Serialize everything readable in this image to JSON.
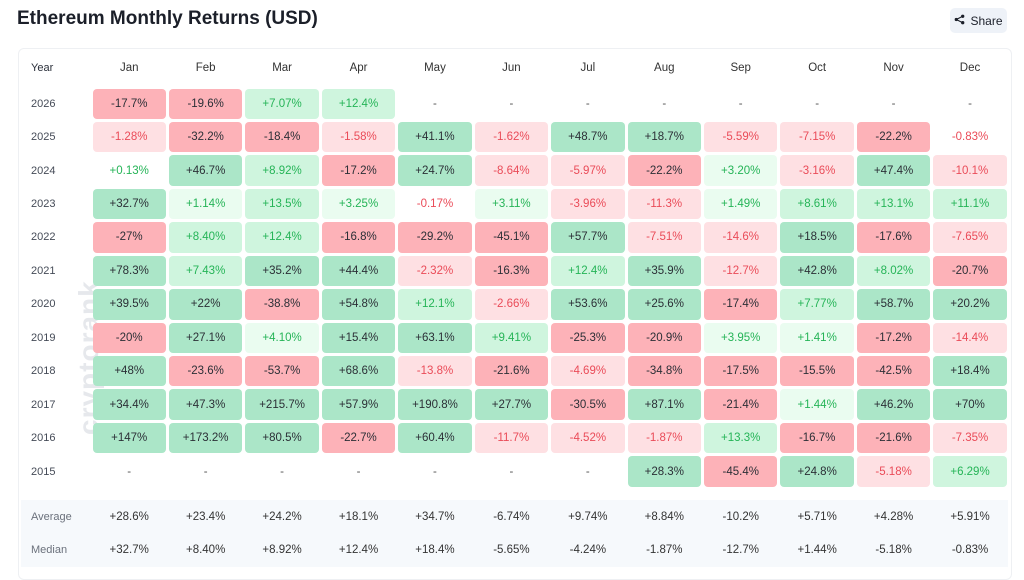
{
  "title": "Ethereum Monthly Returns (USD)",
  "share": {
    "label": "Share",
    "icon": "share-icon"
  },
  "watermark": "cryptorank",
  "colors": {
    "strong_red": "#fdb2b8",
    "light_red": "#fee0e3",
    "strong_green": "#abe6c8",
    "light_green": "#cff5de",
    "pale_green": "#eafcf0",
    "red_text": "#ea4b58",
    "green_text": "#25b457",
    "dark_text": "#2b2f36"
  },
  "table": {
    "year_header": "Year",
    "months": [
      "Jan",
      "Feb",
      "Mar",
      "Apr",
      "May",
      "Jun",
      "Jul",
      "Aug",
      "Sep",
      "Oct",
      "Nov",
      "Dec"
    ],
    "rows": [
      {
        "year": "2026",
        "values": [
          "-17.7%",
          "-19.6%",
          "+7.07%",
          "+12.4%",
          "-",
          "-",
          "-",
          "-",
          "-",
          "-",
          "-",
          "-"
        ]
      },
      {
        "year": "2025",
        "values": [
          "-1.28%",
          "-32.2%",
          "-18.4%",
          "-1.58%",
          "+41.1%",
          "-1.62%",
          "+48.7%",
          "+18.7%",
          "-5.59%",
          "-7.15%",
          "-22.2%",
          "-0.83%"
        ]
      },
      {
        "year": "2024",
        "values": [
          "+0.13%",
          "+46.7%",
          "+8.92%",
          "-17.2%",
          "+24.7%",
          "-8.64%",
          "-5.97%",
          "-22.2%",
          "+3.20%",
          "-3.16%",
          "+47.4%",
          "-10.1%"
        ]
      },
      {
        "year": "2023",
        "values": [
          "+32.7%",
          "+1.14%",
          "+13.5%",
          "+3.25%",
          "-0.17%",
          "+3.11%",
          "-3.96%",
          "-11.3%",
          "+1.49%",
          "+8.61%",
          "+13.1%",
          "+11.1%"
        ]
      },
      {
        "year": "2022",
        "values": [
          "-27%",
          "+8.40%",
          "+12.4%",
          "-16.8%",
          "-29.2%",
          "-45.1%",
          "+57.7%",
          "-7.51%",
          "-14.6%",
          "+18.5%",
          "-17.6%",
          "-7.65%"
        ]
      },
      {
        "year": "2021",
        "values": [
          "+78.3%",
          "+7.43%",
          "+35.2%",
          "+44.4%",
          "-2.32%",
          "-16.3%",
          "+12.4%",
          "+35.9%",
          "-12.7%",
          "+42.8%",
          "+8.02%",
          "-20.7%"
        ]
      },
      {
        "year": "2020",
        "values": [
          "+39.5%",
          "+22%",
          "-38.8%",
          "+54.8%",
          "+12.1%",
          "-2.66%",
          "+53.6%",
          "+25.6%",
          "-17.4%",
          "+7.77%",
          "+58.7%",
          "+20.2%"
        ]
      },
      {
        "year": "2019",
        "values": [
          "-20%",
          "+27.1%",
          "+4.10%",
          "+15.4%",
          "+63.1%",
          "+9.41%",
          "-25.3%",
          "-20.9%",
          "+3.95%",
          "+1.41%",
          "-17.2%",
          "-14.4%"
        ]
      },
      {
        "year": "2018",
        "values": [
          "+48%",
          "-23.6%",
          "-53.7%",
          "+68.6%",
          "-13.8%",
          "-21.6%",
          "-4.69%",
          "-34.8%",
          "-17.5%",
          "-15.5%",
          "-42.5%",
          "+18.4%"
        ]
      },
      {
        "year": "2017",
        "values": [
          "+34.4%",
          "+47.3%",
          "+215.7%",
          "+57.9%",
          "+190.8%",
          "+27.7%",
          "-30.5%",
          "+87.1%",
          "-21.4%",
          "+1.44%",
          "+46.2%",
          "+70%"
        ]
      },
      {
        "year": "2016",
        "values": [
          "+147%",
          "+173.2%",
          "+80.5%",
          "-22.7%",
          "+60.4%",
          "-11.7%",
          "-4.52%",
          "-1.87%",
          "+13.3%",
          "-16.7%",
          "-21.6%",
          "-7.35%"
        ]
      },
      {
        "year": "2015",
        "values": [
          "-",
          "-",
          "-",
          "-",
          "-",
          "-",
          "-",
          "+28.3%",
          "-45.4%",
          "+24.8%",
          "-5.18%",
          "+6.29%"
        ]
      }
    ],
    "stats": [
      {
        "label": "Average",
        "values": [
          "+28.6%",
          "+23.4%",
          "+24.2%",
          "+18.1%",
          "+34.7%",
          "-6.74%",
          "+9.74%",
          "+8.84%",
          "-10.2%",
          "+5.71%",
          "+4.28%",
          "+5.91%"
        ]
      },
      {
        "label": "Median",
        "values": [
          "+32.7%",
          "+8.40%",
          "+8.92%",
          "+12.4%",
          "+18.4%",
          "-5.65%",
          "-4.24%",
          "-1.87%",
          "-12.7%",
          "+1.44%",
          "-5.18%",
          "-0.83%"
        ]
      }
    ]
  }
}
